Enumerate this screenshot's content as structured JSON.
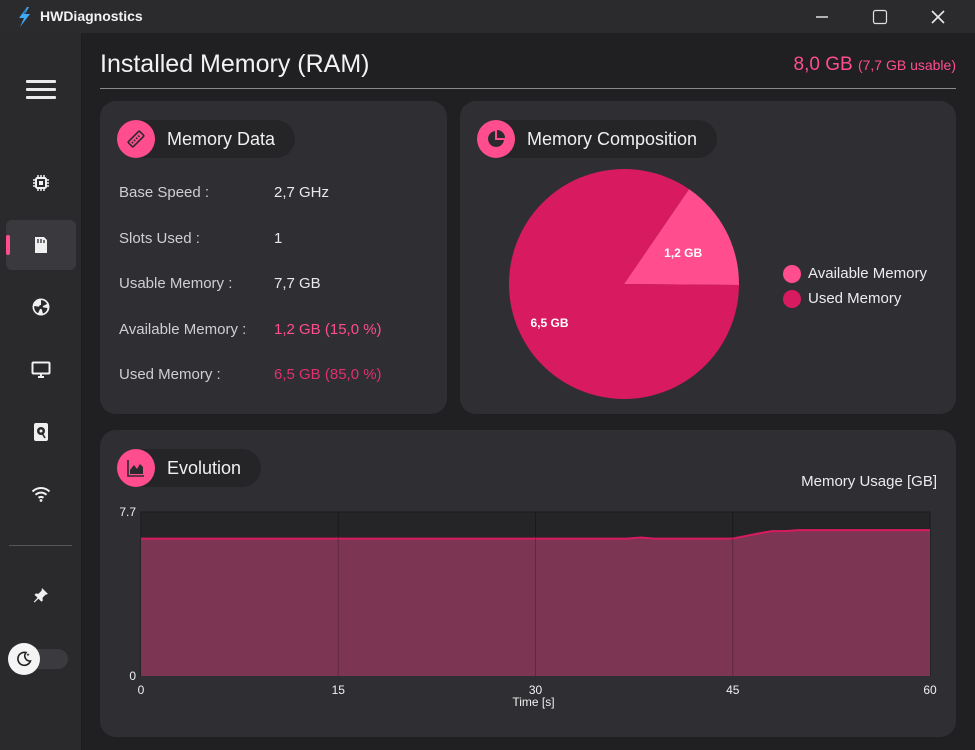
{
  "app": {
    "title": "HWDiagnostics"
  },
  "window_controls": [
    "minimize",
    "maximize",
    "close"
  ],
  "sidebar": {
    "menu_icon": "hamburger-icon",
    "items": [
      {
        "id": "cpu",
        "icon": "cpu-chip-icon",
        "active": false
      },
      {
        "id": "ram",
        "icon": "memory-card-icon",
        "active": true
      },
      {
        "id": "gpu",
        "icon": "gpu-fan-icon",
        "active": false
      },
      {
        "id": "display",
        "icon": "monitor-icon",
        "active": false
      },
      {
        "id": "storage",
        "icon": "hard-drive-icon",
        "active": false
      },
      {
        "id": "network",
        "icon": "wifi-icon",
        "active": false
      }
    ],
    "pin_icon": "pin-icon",
    "theme_toggle": {
      "icon": "moon-icon",
      "state": "off"
    }
  },
  "header": {
    "title": "Installed Memory (RAM)",
    "total": "8,0 GB",
    "usable": "(7,7 GB usable)"
  },
  "memory_data": {
    "title": "Memory Data",
    "icon": "memory-stick-icon",
    "rows": [
      {
        "label": "Base Speed :",
        "value": "2,7 GHz",
        "tone": "normal"
      },
      {
        "label": "Slots Used :",
        "value": "1",
        "tone": "normal"
      },
      {
        "label": "Usable Memory :",
        "value": "7,7 GB",
        "tone": "normal"
      },
      {
        "label": "Available Memory :",
        "value": "1,2 GB (15,0 %)",
        "tone": "pink"
      },
      {
        "label": "Used Memory :",
        "value": "6,5 GB (85,0 %)",
        "tone": "deep"
      }
    ]
  },
  "composition": {
    "title": "Memory Composition",
    "icon": "pie-chart-icon",
    "slices": [
      {
        "name": "Available Memory",
        "label": "1,2 GB",
        "value": 1.2,
        "color": "#ff4d8d"
      },
      {
        "name": "Used Memory",
        "label": "6,5 GB",
        "value": 6.5,
        "color": "#d81b60"
      }
    ]
  },
  "evolution": {
    "title": "Evolution",
    "icon": "area-chart-icon",
    "caption": "Memory Usage [GB]"
  },
  "chart_data": [
    {
      "type": "pie",
      "title": "",
      "categories": [
        "Available Memory",
        "Used Memory"
      ],
      "values": [
        1.2,
        6.5
      ],
      "data_labels": [
        "1,2 GB",
        "6,5 GB"
      ],
      "legend": "right"
    },
    {
      "type": "area",
      "title": "",
      "ylabel": "Memory Usage [GB]",
      "xlabel": "Time [s]",
      "xlim": [
        0,
        60
      ],
      "ylim": [
        0,
        7.7
      ],
      "xticks": [
        "0",
        "15",
        "30",
        "45",
        "60"
      ],
      "yticks": [
        "0",
        "7.7"
      ],
      "grid": true,
      "series": [
        {
          "x": [
            0,
            37,
            38,
            39,
            45,
            47,
            48,
            49,
            50,
            55,
            60
          ],
          "y": [
            6.45,
            6.45,
            6.5,
            6.45,
            6.45,
            6.7,
            6.8,
            6.8,
            6.85,
            6.85,
            6.85
          ],
          "color": "#d81b60"
        }
      ]
    }
  ]
}
